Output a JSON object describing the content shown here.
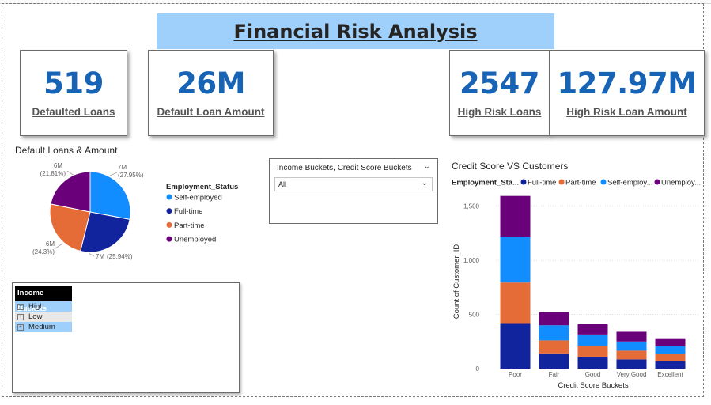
{
  "header": {
    "title": "Financial Risk Analysis"
  },
  "cards": [
    {
      "value": "519",
      "label": "Defaulted Loans"
    },
    {
      "value": "26M",
      "label": "Default Loan Amount"
    },
    {
      "value": "2547",
      "label": "High Risk Loans"
    },
    {
      "value": "127.97M",
      "label": "High Risk Loan Amount"
    }
  ],
  "colors": {
    "self_employed": "#118dff",
    "full_time": "#12239e",
    "part_time": "#e66c37",
    "unemployed": "#6b007b",
    "accent": "#1763b5",
    "title_bg": "#9fd0fb"
  },
  "slicer": {
    "title": "Income Buckets, Credit Score Buckets",
    "selected": "All"
  },
  "matrix": {
    "header": "Income Buckets",
    "rows": [
      "High",
      "Low",
      "Medium"
    ]
  },
  "chart_data": [
    {
      "type": "pie",
      "title": "Default Loans & Amount",
      "legend_title": "Employment_Status",
      "legend_position": "right",
      "legend": [
        "Self-employed",
        "Full-time",
        "Part-time",
        "Unemployed"
      ],
      "slices": [
        {
          "name": "Self-employed",
          "label": "7M",
          "pct_label": "(27.95%)",
          "percent": 27.95
        },
        {
          "name": "Full-time",
          "label": "7M",
          "pct_label": "(25.94%)",
          "percent": 25.94
        },
        {
          "name": "Part-time",
          "label": "6M",
          "pct_label": "(24.3%)",
          "percent": 24.3
        },
        {
          "name": "Unemployed",
          "label": "6M",
          "pct_label": "(21.81%)",
          "percent": 21.81
        }
      ]
    },
    {
      "type": "bar",
      "stacked": true,
      "title": "Credit Score VS Customers",
      "legend_title": "Employment_Sta...",
      "legend_position": "top",
      "legend": [
        "Full-time",
        "Part-time",
        "Self-employ...",
        "Unemploy..."
      ],
      "xlabel": "Credit Score Buckets",
      "ylabel": "Count of Customer_ID",
      "categories": [
        "Poor",
        "Fair",
        "Good",
        "Very Good",
        "Excellent"
      ],
      "yticks": [
        "0",
        "500",
        "1,000",
        "1,500"
      ],
      "ylim": [
        0,
        1700
      ],
      "grid": true,
      "series": [
        {
          "name": "Full-time",
          "values": [
            420,
            140,
            110,
            85,
            70
          ]
        },
        {
          "name": "Part-time",
          "values": [
            375,
            120,
            100,
            80,
            65
          ]
        },
        {
          "name": "Self-employed",
          "values": [
            425,
            140,
            105,
            85,
            70
          ]
        },
        {
          "name": "Unemployed",
          "values": [
            375,
            120,
            95,
            90,
            75
          ]
        }
      ]
    }
  ]
}
